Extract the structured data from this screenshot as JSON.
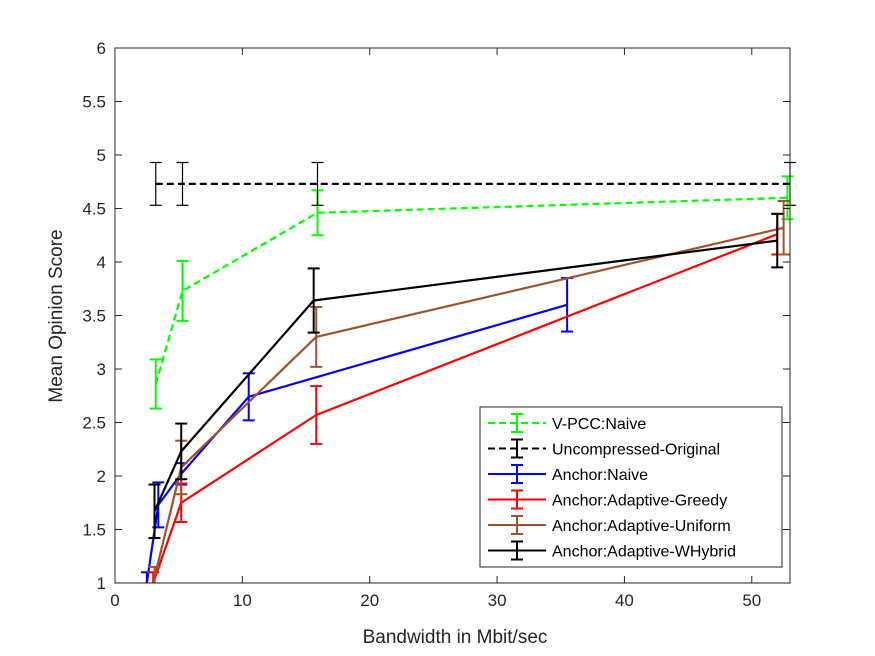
{
  "chart_data": {
    "type": "line",
    "title": "",
    "xlabel": "Bandwidth in Mbit/sec",
    "ylabel": "Mean Opinion Score",
    "xlim": [
      0,
      53
    ],
    "ylim": [
      1,
      6
    ],
    "xticks": [
      0,
      10,
      20,
      30,
      40,
      50
    ],
    "yticks": [
      1,
      1.5,
      2,
      2.5,
      3,
      3.5,
      4,
      4.5,
      5,
      5.5,
      6
    ],
    "ytick_labels": [
      "1",
      "1.5",
      "2",
      "2.5",
      "3",
      "3.5",
      "4",
      "4.5",
      "5",
      "5.5",
      "6"
    ],
    "grid": false,
    "legend_position": "bottom-right",
    "series": [
      {
        "name": "V-PCC:Naive",
        "color": "#00ff00",
        "dash": "dashed",
        "x": [
          3.2,
          5.3,
          15.9,
          52.8
        ],
        "y": [
          2.86,
          3.73,
          4.46,
          4.6
        ],
        "err": [
          0.23,
          0.28,
          0.21,
          0.2
        ]
      },
      {
        "name": "Uncompressed-Original",
        "color": "#000000",
        "dash": "dashed",
        "x": [
          3.2,
          5.3,
          15.9,
          53
        ],
        "y": [
          4.73,
          4.73,
          4.73,
          4.73
        ],
        "err": [
          0.2,
          0.2,
          0.2,
          0.2
        ]
      },
      {
        "name": "Anchor:Naive",
        "color": "#0000ff",
        "dash": "solid",
        "x": [
          2.5,
          3.4,
          5.2,
          10.5,
          35.5
        ],
        "y": [
          1.0,
          1.73,
          2.02,
          2.74,
          3.6
        ],
        "err": [
          0.1,
          0.21,
          0.1,
          0.22,
          0.25
        ]
      },
      {
        "name": "Anchor:Adaptive-Greedy",
        "color": "#ff0000",
        "dash": "solid",
        "x": [
          3.0,
          5.2,
          15.8,
          52.0
        ],
        "y": [
          1.0,
          1.75,
          2.57,
          4.26
        ],
        "err": [
          0.1,
          0.18,
          0.27,
          0.19
        ]
      },
      {
        "name": "Anchor:Adaptive-Uniform",
        "color": "#a0522d",
        "dash": "solid",
        "x": [
          3.1,
          5.2,
          15.8,
          52.5
        ],
        "y": [
          1.05,
          2.08,
          3.3,
          4.32
        ],
        "err": [
          0.1,
          0.25,
          0.28,
          0.25
        ]
      },
      {
        "name": "Anchor:Adaptive-WHybrid",
        "color": "#000000",
        "dash": "solid",
        "x": [
          3.1,
          5.2,
          15.6,
          52.0
        ],
        "y": [
          1.67,
          2.23,
          3.64,
          4.2
        ],
        "err": [
          0.25,
          0.26,
          0.3,
          0.25
        ]
      }
    ]
  }
}
